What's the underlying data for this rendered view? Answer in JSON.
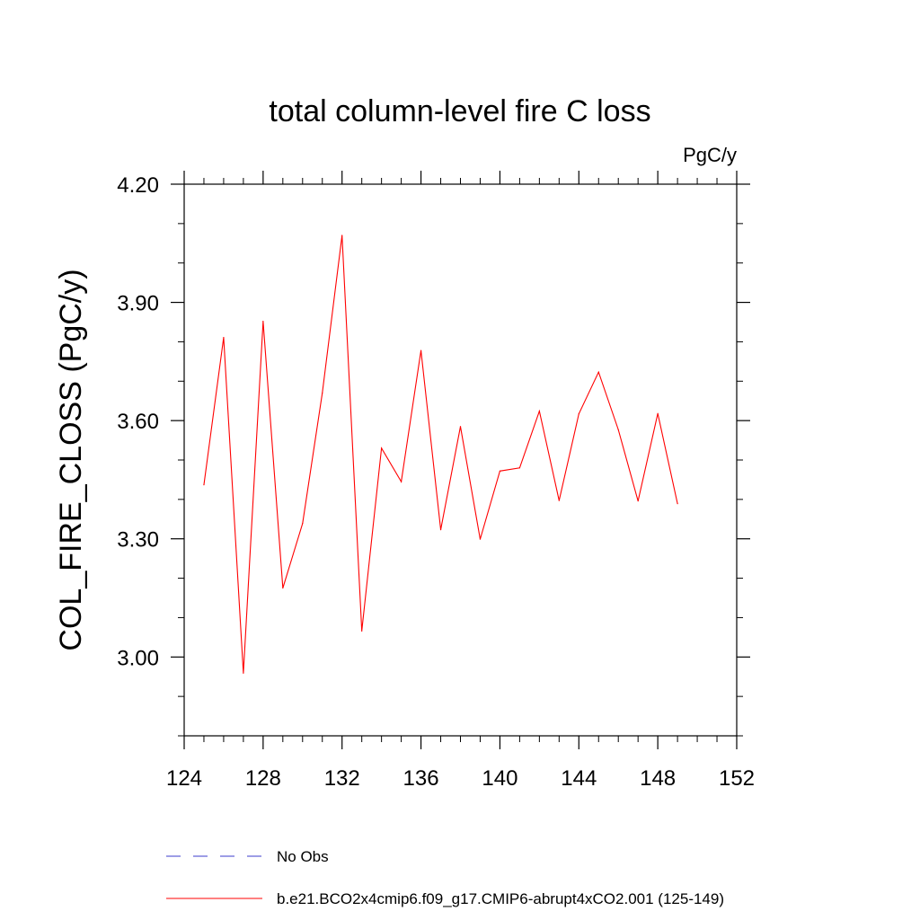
{
  "chart_data": {
    "type": "line",
    "title": "total column-level fire C loss",
    "units_label": "PgC/y",
    "ylabel": "COL_FIRE_CLOSS  (PgC/y)",
    "xlabel": "",
    "xlim": [
      124,
      152
    ],
    "ylim": [
      2.8,
      4.2
    ],
    "x_ticks": [
      124,
      128,
      132,
      136,
      140,
      144,
      148,
      152
    ],
    "x_tick_labels": [
      "124",
      "128",
      "132",
      "136",
      "140",
      "144",
      "148",
      "152"
    ],
    "x_minor_step": 1,
    "y_ticks": [
      3.0,
      3.3,
      3.6,
      3.9,
      4.2
    ],
    "y_tick_labels": [
      "3.00",
      "3.30",
      "3.60",
      "3.90",
      "4.20"
    ],
    "y_minor_step": 0.1,
    "grid": false,
    "legend_position": "bottom",
    "series": [
      {
        "name": "b.e21.BCO2x4cmip6.f09_g17.CMIP6-abrupt4xCO2.001 (125-149)",
        "color": "#ff0000",
        "style": "solid",
        "x": [
          125,
          126,
          127,
          128,
          129,
          130,
          131,
          132,
          133,
          134,
          135,
          136,
          137,
          138,
          139,
          140,
          141,
          142,
          143,
          144,
          145,
          146,
          147,
          148,
          149
        ],
        "values": [
          3.437,
          3.811,
          2.959,
          3.852,
          3.175,
          3.339,
          3.67,
          4.07,
          3.066,
          3.53,
          3.445,
          3.778,
          3.323,
          3.585,
          3.299,
          3.472,
          3.48,
          3.624,
          3.397,
          3.617,
          3.723,
          3.577,
          3.396,
          3.618,
          3.389
        ]
      }
    ],
    "legend": [
      {
        "label": "No Obs",
        "color": "#3b3bcc",
        "style": "dashed"
      },
      {
        "label": "b.e21.BCO2x4cmip6.f09_g17.CMIP6-abrupt4xCO2.001 (125-149)",
        "color": "#ff0000",
        "style": "solid"
      }
    ]
  }
}
